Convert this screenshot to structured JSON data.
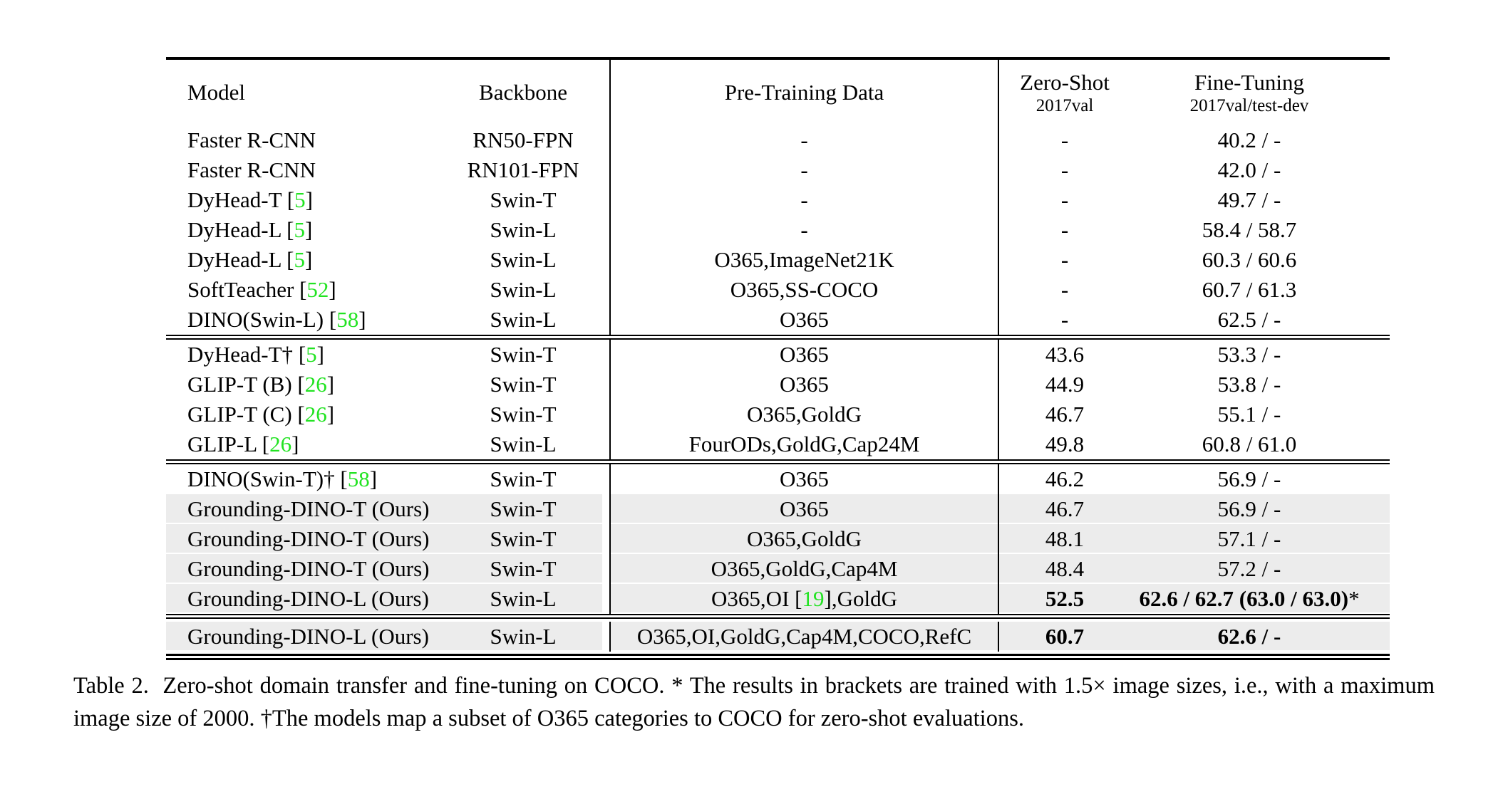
{
  "colors": {
    "citation_green": "#22E322",
    "row_highlight": "#ECECEC",
    "rule_black": "#000000"
  },
  "header": {
    "model": "Model",
    "backbone": "Backbone",
    "pretrain": "Pre-Training Data",
    "zeroshot_title": "Zero-Shot",
    "zeroshot_sub": "2017val",
    "finetune_title": "Fine-Tuning",
    "finetune_sub": "2017val/test-dev"
  },
  "blocks": [
    {
      "rows": [
        {
          "model": [
            {
              "t": "Faster R-CNN"
            }
          ],
          "backbone": "RN50-FPN",
          "pretrain": [
            {
              "t": "-"
            }
          ],
          "zs": [
            {
              "t": "-"
            }
          ],
          "ft": [
            {
              "t": "40.2 / -"
            }
          ]
        },
        {
          "model": [
            {
              "t": "Faster R-CNN"
            }
          ],
          "backbone": "RN101-FPN",
          "pretrain": [
            {
              "t": "-"
            }
          ],
          "zs": [
            {
              "t": "-"
            }
          ],
          "ft": [
            {
              "t": "42.0 / -"
            }
          ]
        },
        {
          "model": [
            {
              "t": "DyHead-T "
            },
            {
              "cite": "5"
            }
          ],
          "backbone": "Swin-T",
          "pretrain": [
            {
              "t": "-"
            }
          ],
          "zs": [
            {
              "t": "-"
            }
          ],
          "ft": [
            {
              "t": "49.7 / -"
            }
          ]
        },
        {
          "model": [
            {
              "t": "DyHead-L "
            },
            {
              "cite": "5"
            }
          ],
          "backbone": "Swin-L",
          "pretrain": [
            {
              "t": "-"
            }
          ],
          "zs": [
            {
              "t": "-"
            }
          ],
          "ft": [
            {
              "t": "58.4 / 58.7"
            }
          ]
        },
        {
          "model": [
            {
              "t": "DyHead-L "
            },
            {
              "cite": "5"
            }
          ],
          "backbone": "Swin-L",
          "pretrain": [
            {
              "t": "O365,ImageNet21K"
            }
          ],
          "zs": [
            {
              "t": "-"
            }
          ],
          "ft": [
            {
              "t": "60.3 / 60.6"
            }
          ]
        },
        {
          "model": [
            {
              "t": "SoftTeacher "
            },
            {
              "cite": "52"
            }
          ],
          "backbone": "Swin-L",
          "pretrain": [
            {
              "t": "O365,SS-COCO"
            }
          ],
          "zs": [
            {
              "t": "-"
            }
          ],
          "ft": [
            {
              "t": "60.7 / 61.3"
            }
          ]
        },
        {
          "model": [
            {
              "t": "DINO(Swin-L) "
            },
            {
              "cite": "58"
            }
          ],
          "backbone": "Swin-L",
          "pretrain": [
            {
              "t": "O365"
            }
          ],
          "zs": [
            {
              "t": "-"
            }
          ],
          "ft": [
            {
              "t": "62.5 / -"
            }
          ]
        }
      ]
    },
    {
      "rows": [
        {
          "model": [
            {
              "t": "DyHead-T† "
            },
            {
              "cite": "5"
            }
          ],
          "backbone": "Swin-T",
          "pretrain": [
            {
              "t": "O365"
            }
          ],
          "zs": [
            {
              "t": "43.6"
            }
          ],
          "ft": [
            {
              "t": "53.3 / -"
            }
          ]
        },
        {
          "model": [
            {
              "t": "GLIP-T (B) "
            },
            {
              "cite": "26"
            }
          ],
          "backbone": "Swin-T",
          "pretrain": [
            {
              "t": "O365"
            }
          ],
          "zs": [
            {
              "t": "44.9"
            }
          ],
          "ft": [
            {
              "t": "53.8 / -"
            }
          ]
        },
        {
          "model": [
            {
              "t": "GLIP-T (C) "
            },
            {
              "cite": "26"
            }
          ],
          "backbone": "Swin-T",
          "pretrain": [
            {
              "t": "O365,GoldG"
            }
          ],
          "zs": [
            {
              "t": "46.7"
            }
          ],
          "ft": [
            {
              "t": "55.1 / -"
            }
          ]
        },
        {
          "model": [
            {
              "t": "GLIP-L "
            },
            {
              "cite": "26"
            }
          ],
          "backbone": "Swin-L",
          "pretrain": [
            {
              "t": "FourODs,GoldG,Cap24M"
            }
          ],
          "zs": [
            {
              "t": "49.8"
            }
          ],
          "ft": [
            {
              "t": "60.8 / 61.0"
            }
          ]
        }
      ]
    },
    {
      "rows": [
        {
          "model": [
            {
              "t": "DINO(Swin-T)† "
            },
            {
              "cite": "58"
            }
          ],
          "backbone": "Swin-T",
          "pretrain": [
            {
              "t": "O365"
            }
          ],
          "zs": [
            {
              "t": "46.2"
            }
          ],
          "ft": [
            {
              "t": "56.9 / -"
            }
          ]
        },
        {
          "hl": true,
          "model": [
            {
              "t": "Grounding-DINO-T (Ours)"
            }
          ],
          "backbone": "Swin-T",
          "pretrain": [
            {
              "t": "O365"
            }
          ],
          "zs": [
            {
              "t": "46.7"
            }
          ],
          "ft": [
            {
              "t": "56.9 / -"
            }
          ]
        },
        {
          "hl": true,
          "model": [
            {
              "t": "Grounding-DINO-T (Ours)"
            }
          ],
          "backbone": "Swin-T",
          "pretrain": [
            {
              "t": "O365,GoldG"
            }
          ],
          "zs": [
            {
              "t": "48.1"
            }
          ],
          "ft": [
            {
              "t": "57.1 / -"
            }
          ]
        },
        {
          "hl": true,
          "model": [
            {
              "t": "Grounding-DINO-T (Ours)"
            }
          ],
          "backbone": "Swin-T",
          "pretrain": [
            {
              "t": "O365,GoldG,Cap4M"
            }
          ],
          "zs": [
            {
              "t": "48.4"
            }
          ],
          "ft": [
            {
              "t": "57.2 / -"
            }
          ]
        },
        {
          "hl": true,
          "model": [
            {
              "t": "Grounding-DINO-L (Ours)"
            }
          ],
          "backbone": "Swin-L",
          "pretrain": [
            {
              "t": "O365,OI "
            },
            {
              "cite": "19"
            },
            {
              "t": ",GoldG"
            }
          ],
          "zs": [
            {
              "t": "52.5",
              "b": true
            }
          ],
          "ft": [
            {
              "t": "62.6 / 62.7 (63.0 / 63.0)",
              "b": true
            },
            {
              "t": "*"
            }
          ]
        }
      ]
    },
    {
      "pad": true,
      "rows": [
        {
          "hl": true,
          "model": [
            {
              "t": "Grounding-DINO-L (Ours)"
            }
          ],
          "backbone": "Swin-L",
          "pretrain": [
            {
              "t": "O365,OI,GoldG,Cap4M,COCO,RefC"
            }
          ],
          "zs": [
            {
              "t": "60.7",
              "b": true
            }
          ],
          "ft": [
            {
              "t": "62.6 / -",
              "b": true
            }
          ]
        }
      ]
    }
  ],
  "caption": "Table 2.  Zero-shot domain transfer and fine-tuning on COCO. * The results in brackets are trained with 1.5× image sizes, i.e., with a maximum image size of 2000. †The models map a subset of O365 categories to COCO for zero-shot evaluations."
}
